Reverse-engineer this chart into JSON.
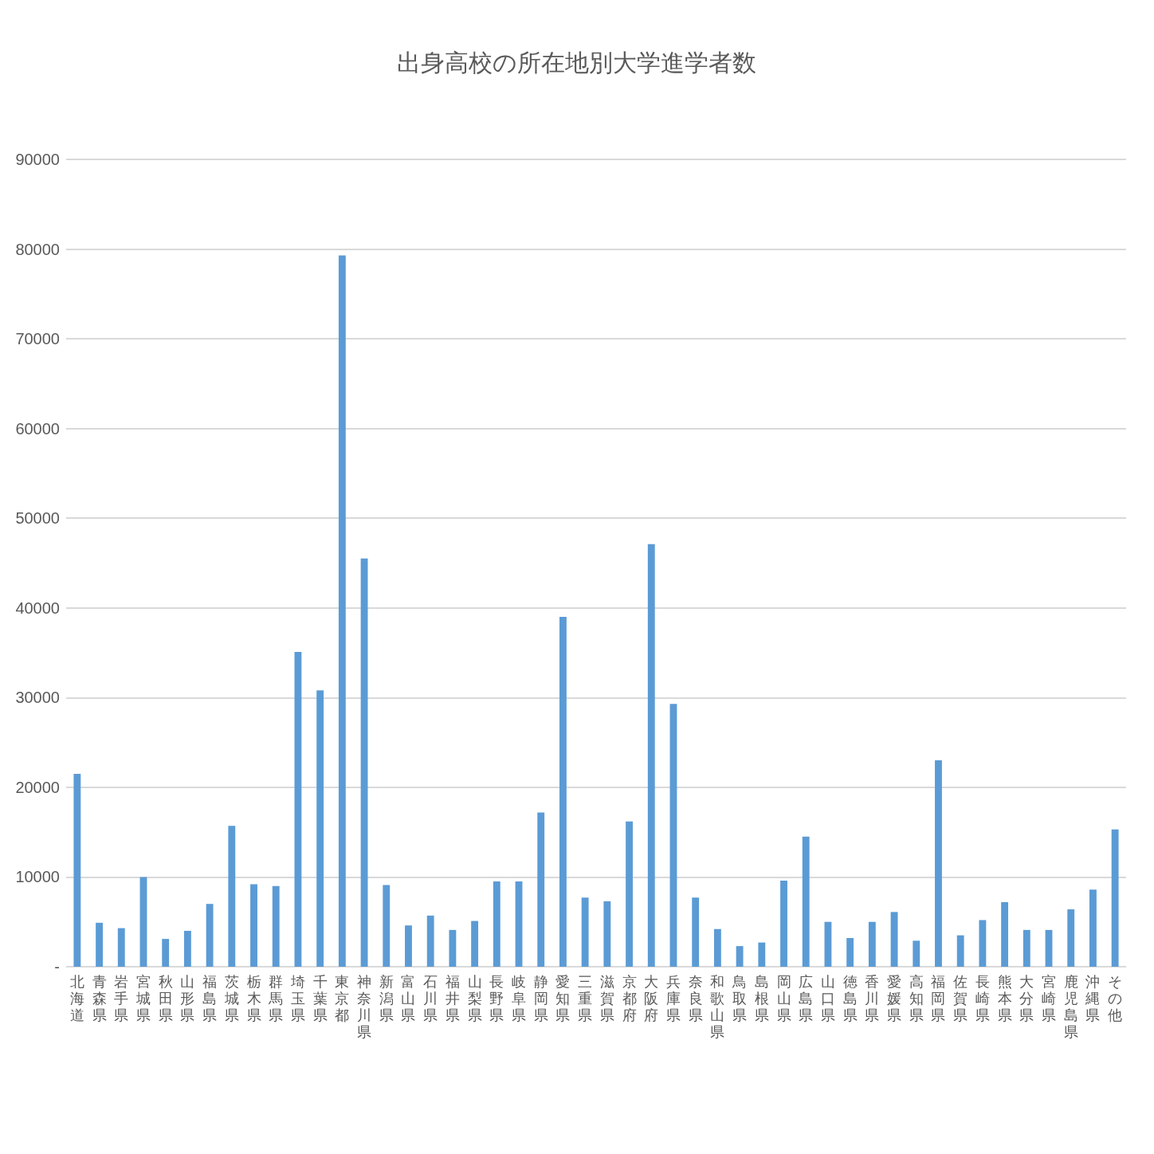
{
  "chart_data": {
    "type": "bar",
    "title": "出身高校の所在地別大学進学者数",
    "categories": [
      "北海道",
      "青森県",
      "岩手県",
      "宮城県",
      "秋田県",
      "山形県",
      "福島県",
      "茨城県",
      "栃木県",
      "群馬県",
      "埼玉県",
      "千葉県",
      "東京都",
      "神奈川県",
      "新潟県",
      "富山県",
      "石川県",
      "福井県",
      "山梨県",
      "長野県",
      "岐阜県",
      "静岡県",
      "愛知県",
      "三重県",
      "滋賀県",
      "京都府",
      "大阪府",
      "兵庫県",
      "奈良県",
      "和歌山県",
      "鳥取県",
      "島根県",
      "岡山県",
      "広島県",
      "山口県",
      "徳島県",
      "香川県",
      "愛媛県",
      "高知県",
      "福岡県",
      "佐賀県",
      "長崎県",
      "熊本県",
      "大分県",
      "宮崎県",
      "鹿児島県",
      "沖縄県",
      "その他"
    ],
    "values": [
      21500,
      4900,
      4300,
      10000,
      3100,
      4000,
      7000,
      15700,
      9200,
      9000,
      35100,
      30800,
      79300,
      45500,
      9100,
      4600,
      5700,
      4100,
      5100,
      9500,
      9500,
      17200,
      39000,
      7700,
      7300,
      16200,
      47100,
      29300,
      7700,
      4200,
      2300,
      2700,
      9600,
      14500,
      5000,
      3200,
      5000,
      6100,
      2900,
      23000,
      3500,
      5200,
      7200,
      4100,
      4100,
      6400,
      8600,
      15300
    ],
    "color": "#5b9bd5",
    "ylim": [
      0,
      90000
    ],
    "yticks": [
      {
        "value": 0,
        "label": "-"
      },
      10000,
      20000,
      30000,
      40000,
      50000,
      60000,
      70000,
      80000,
      90000
    ],
    "grid": "y"
  }
}
